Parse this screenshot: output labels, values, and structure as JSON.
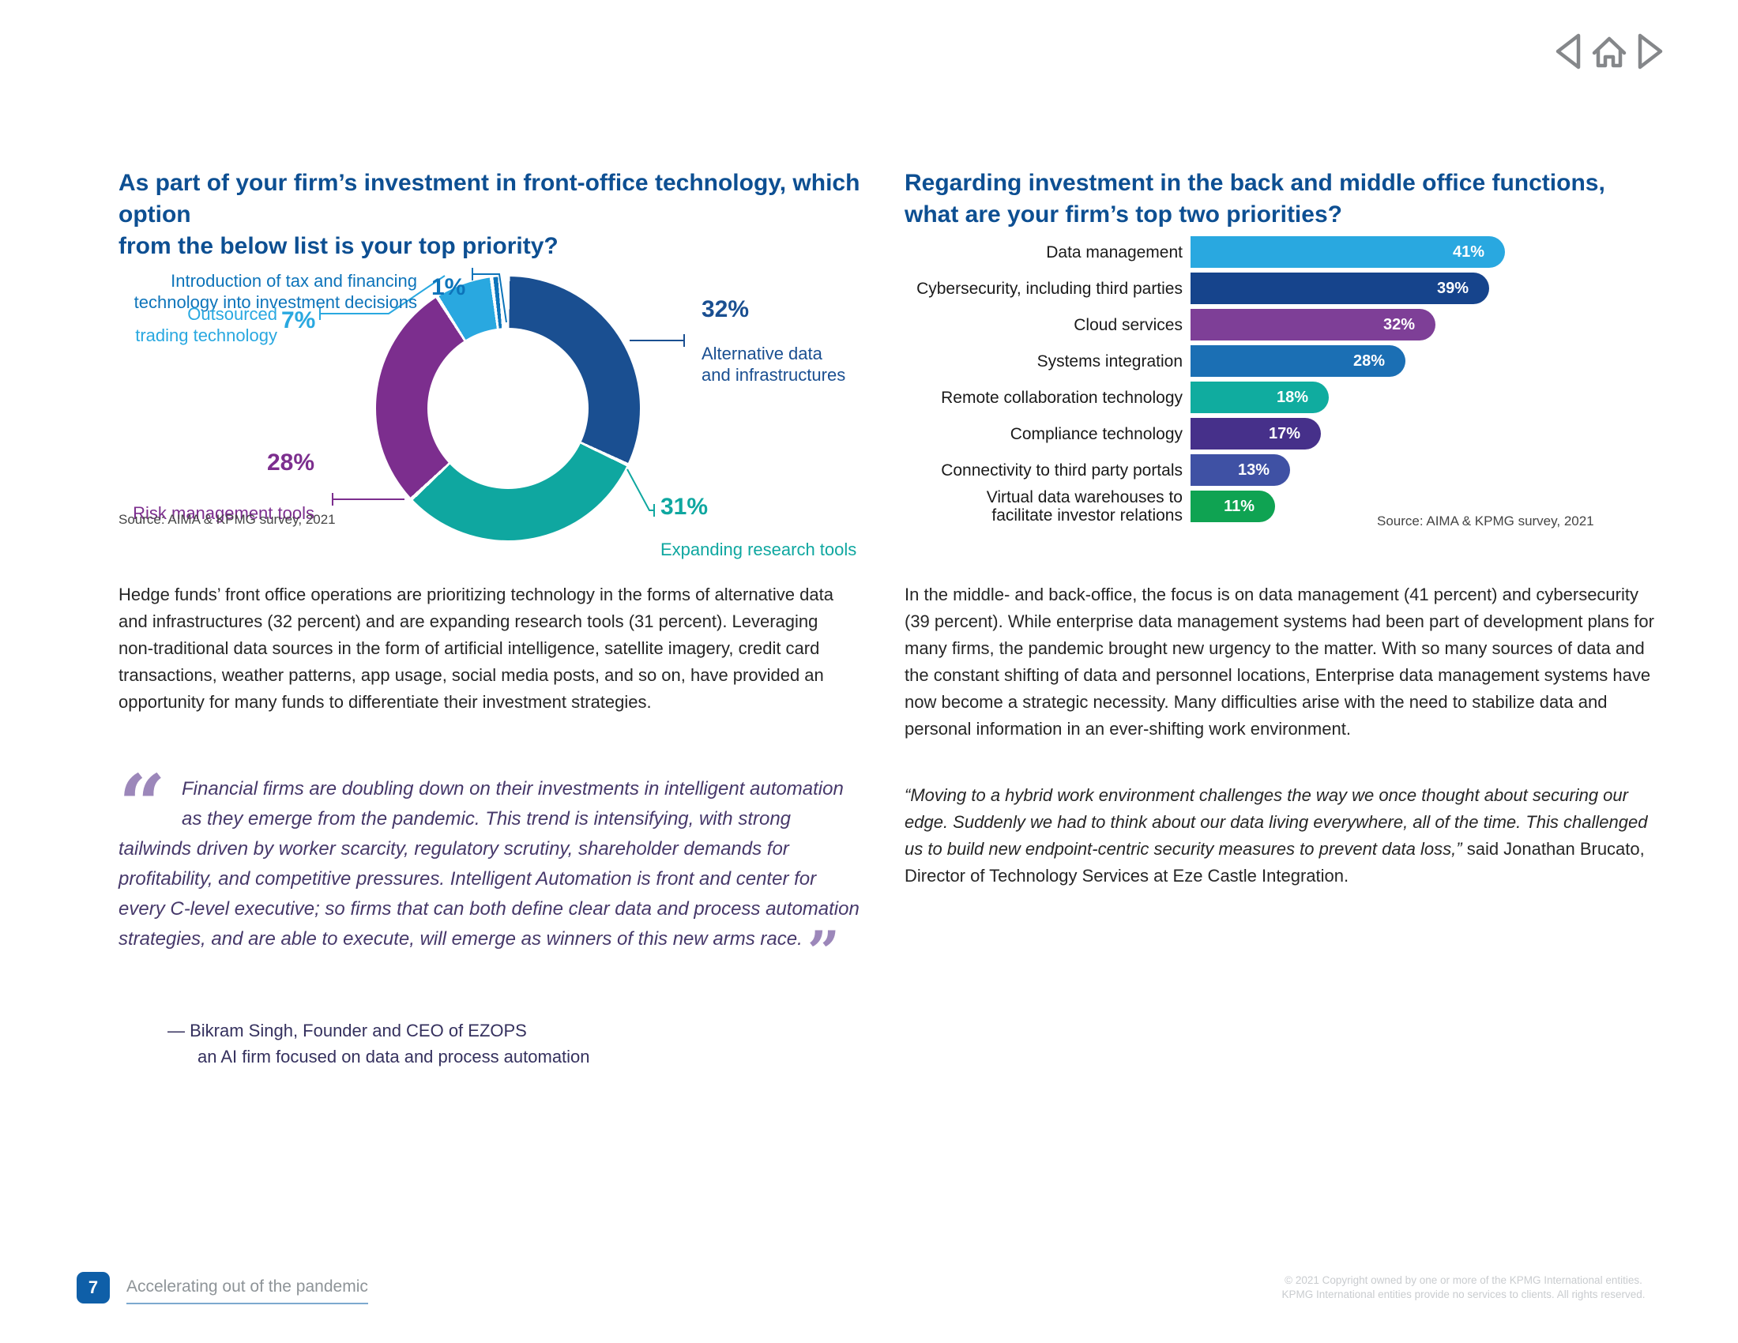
{
  "nav": {
    "icons": [
      "previous-page",
      "home",
      "next-page"
    ],
    "icon_color": "#85878A"
  },
  "left_chart": {
    "title": "As part of your firm’s investment in front-office technology, which option\nfrom the below list is your top priority?",
    "source": "Source: AIMA & KPMG survey, 2021"
  },
  "right_chart": {
    "title": "Regarding investment in the back and middle office functions,\nwhat are your firm’s top two priorities?",
    "source": "Source: AIMA & KPMG survey, 2021"
  },
  "chart_data": [
    {
      "type": "pie",
      "subtype": "donut",
      "title": "As part of your firm’s investment in front-office technology, which option from the below list is your top priority?",
      "source": "Source: AIMA & KPMG survey, 2021",
      "segments": [
        {
          "label": "Alternative data\nand infrastructures",
          "pct": 32,
          "pct_label": "32%",
          "color": "#1A4F91"
        },
        {
          "label": "Expanding research tools",
          "pct": 31,
          "pct_label": "31%",
          "color": "#0FA7A0"
        },
        {
          "label": "Risk management tools",
          "pct": 28,
          "pct_label": "28%",
          "color": "#7C2E8E"
        },
        {
          "label": "Outsourced\ntrading technology",
          "pct": 7,
          "pct_label": "7%",
          "color": "#29A8E0"
        },
        {
          "label": "Introduction of tax and financing\ntechnology into investment decisions",
          "pct": 1,
          "pct_label": "1%",
          "color": "#0D74BA"
        }
      ]
    },
    {
      "type": "bar",
      "orientation": "horizontal",
      "title": "Regarding investment in the back and middle office functions, what are your firm’s top two priorities?",
      "source": "Source: AIMA & KPMG survey, 2021",
      "xlim": [
        0,
        41
      ],
      "rows": [
        {
          "label": "Data management",
          "pct": 41,
          "value_label": "41%",
          "color": "#29A8E0"
        },
        {
          "label": "Cybersecurity, including third parties",
          "pct": 39,
          "value_label": "39%",
          "color": "#16448C"
        },
        {
          "label": "Cloud services",
          "pct": 32,
          "value_label": "32%",
          "color": "#7E3F97"
        },
        {
          "label": "Systems integration",
          "pct": 28,
          "value_label": "28%",
          "color": "#1B6FB4"
        },
        {
          "label": "Remote collaboration technology",
          "pct": 18,
          "value_label": "18%",
          "color": "#10AC9F"
        },
        {
          "label": "Compliance technology",
          "pct": 17,
          "value_label": "17%",
          "color": "#46308A"
        },
        {
          "label": "Connectivity to third party portals",
          "pct": 13,
          "value_label": "13%",
          "color": "#3F51A4"
        },
        {
          "label": "Virtual data warehouses to\nfacilitate investor relations",
          "pct": 11,
          "value_label": "11%",
          "color": "#0FA352"
        }
      ]
    }
  ],
  "left_column": {
    "paragraph": "Hedge funds’ front office operations are prioritizing technology in the forms of alternative data and infrastructures (32 percent) and are expanding research tools (31 percent). Leveraging non-traditional data sources in the form of artificial intelligence, satellite imagery, credit card transactions, weather patterns, app usage, social media posts, and so on, have provided an opportunity for many funds to differentiate their investment strategies.",
    "quote": {
      "open_mark": "“",
      "close_mark": "”",
      "mark_color": "#9C87BA",
      "text": "Financial firms are doubling down on their investments in intelligent automation as they emerge from the pandemic. This trend is intensifying, with strong tailwinds driven by worker scarcity, regulatory scrutiny, shareholder demands for profitability, and competitive pressures. Intelligent Automation is front and center for every C-level executive; so firms that can both define clear data and process automation strategies, and are able to execute, will emerge as winners of this new arms race.",
      "attribution_line1": "— Bikram Singh, Founder and CEO of EZOPS",
      "attribution_line2": "an AI firm focused on data and process automation"
    }
  },
  "right_column": {
    "paragraph": "In the middle- and back-office, the focus is on data management (41 percent) and cybersecurity (39 percent). While enterprise data management systems had been part of development plans for many firms, the pandemic brought new urgency to the matter. With so many sources of data and the constant shifting of data and personnel locations, Enterprise data management systems have now become a strategic necessity. Many difficulties arise with the need to stabilize data and personal information in an ever-shifting work environment.",
    "quote_italic": "“Moving to a hybrid work environment challenges the way we once thought about securing our edge. Suddenly we had to think about our data living everywhere, all of the time. This challenged us to build new endpoint-centric security measures to prevent data loss,”",
    "quote_roman": " said Jonathan Brucato, Director of Technology Services at Eze Castle Integration."
  },
  "footer": {
    "page_number": "7",
    "title": "Accelerating out of the pandemic",
    "copyright_line1": "© 2021 Copyright owned by one or more of the KPMG International entities.",
    "copyright_line2": "KPMG International entities provide no services to clients. All rights reserved."
  }
}
